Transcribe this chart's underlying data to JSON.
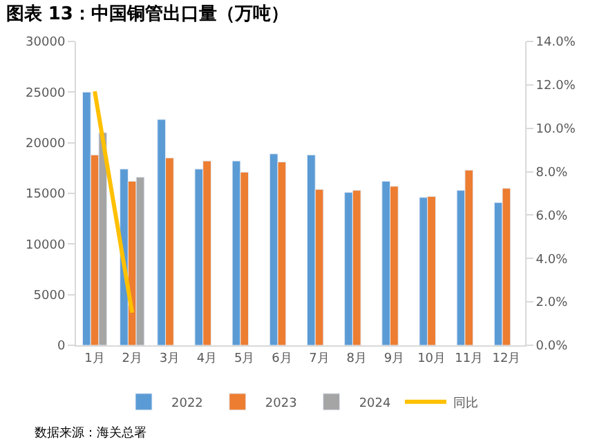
{
  "chart_data": {
    "type": "bar",
    "title": "图表 13：中国铜管出口量（万吨）",
    "categories": [
      "1月",
      "2月",
      "3月",
      "4月",
      "5月",
      "6月",
      "7月",
      "8月",
      "9月",
      "10月",
      "11月",
      "12月"
    ],
    "series": [
      {
        "name": "2022",
        "color": "#5b9bd5",
        "values": [
          25000,
          17400,
          22300,
          17400,
          18200,
          18900,
          18800,
          15100,
          16200,
          14600,
          15300,
          14100
        ]
      },
      {
        "name": "2023",
        "color": "#ed7d31",
        "values": [
          18800,
          16200,
          18500,
          18200,
          17100,
          18100,
          15400,
          15300,
          15700,
          14700,
          17300,
          15500
        ]
      },
      {
        "name": "2024",
        "color": "#a5a5a5",
        "values": [
          21000,
          16600,
          null,
          null,
          null,
          null,
          null,
          null,
          null,
          null,
          null,
          null
        ]
      },
      {
        "name": "同比",
        "type": "line",
        "axis": "y2",
        "color": "#ffc000",
        "values": [
          11.7,
          1.5,
          null,
          null,
          null,
          null,
          null,
          null,
          null,
          null,
          null,
          null
        ]
      }
    ],
    "ylim": [
      0,
      30000
    ],
    "yticks": [
      0,
      5000,
      10000,
      15000,
      20000,
      25000,
      30000
    ],
    "y2lim": [
      0,
      14
    ],
    "y2ticks": [
      {
        "value": 0,
        "label": "0.0%"
      },
      {
        "value": 2,
        "label": "2.0%"
      },
      {
        "value": 4,
        "label": "4.0%"
      },
      {
        "value": 6,
        "label": "6.0%"
      },
      {
        "value": 8,
        "label": "8.0%"
      },
      {
        "value": 10,
        "label": "10.0%"
      },
      {
        "value": 12,
        "label": "12.0%"
      },
      {
        "value": 14,
        "label": "14.0%"
      }
    ],
    "legend": "bottom",
    "marker": "none",
    "annotations": [
      "数据来源：海关总署"
    ]
  }
}
